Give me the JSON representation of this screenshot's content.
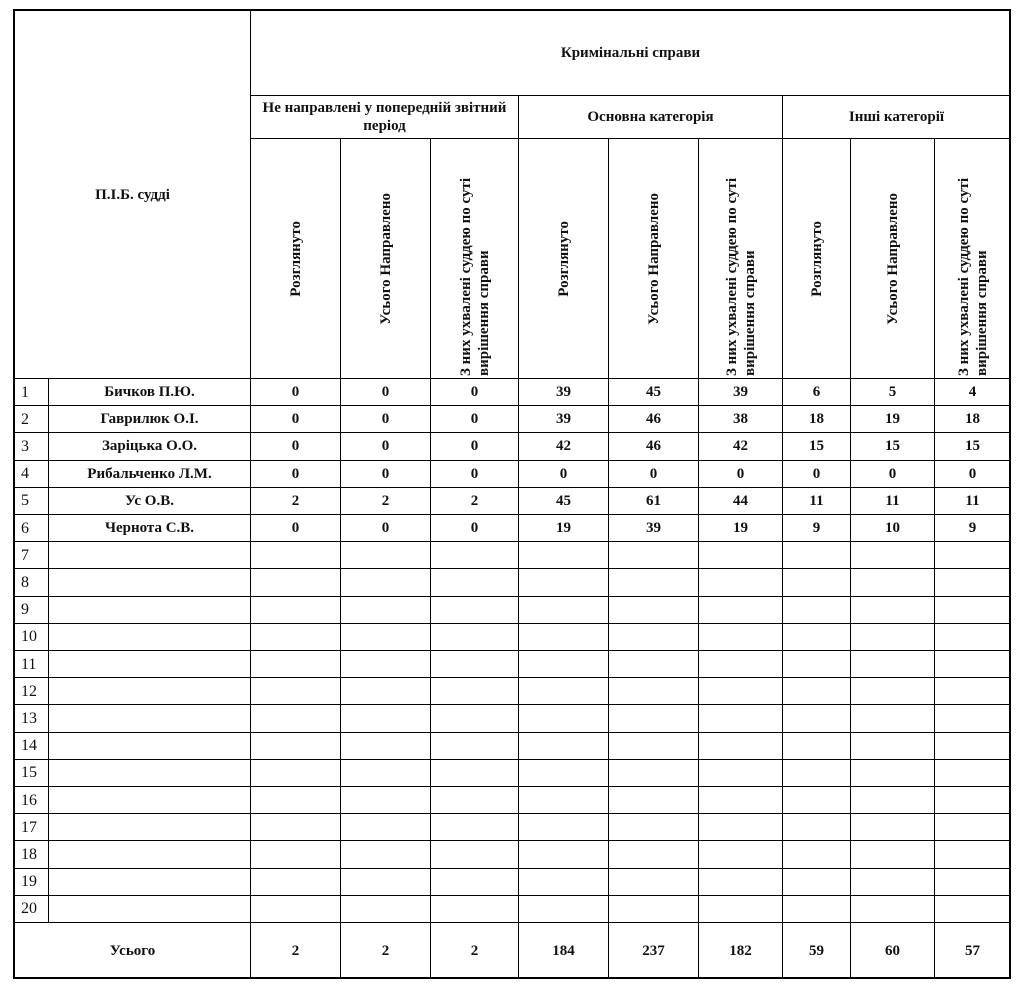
{
  "header": {
    "judge_column": "П.І.Б. судді",
    "title": "Кримінальні справи",
    "groups": [
      {
        "title": "Не направлені у попередній звітний період",
        "columns": [
          "Розглянуто",
          "Усього Направлено",
          "З них ухвалені суддею по суті вирішення справи"
        ]
      },
      {
        "title": "Основна категорія",
        "columns": [
          "Розглянуто",
          "Усього Направлено",
          "З них ухвалені суддею по суті вирішення справи"
        ]
      },
      {
        "title": "Інші категорії",
        "columns": [
          "Розглянуто",
          "Усього Направлено",
          "З них ухвалені суддею по суті вирішення справи"
        ]
      }
    ]
  },
  "rows": [
    {
      "number": 1,
      "name": "Бичков П.Ю.",
      "values": [
        0,
        0,
        0,
        39,
        45,
        39,
        6,
        5,
        4
      ]
    },
    {
      "number": 2,
      "name": "Гаврилюк О.І.",
      "values": [
        0,
        0,
        0,
        39,
        46,
        38,
        18,
        19,
        18
      ]
    },
    {
      "number": 3,
      "name": "Заріцька О.О.",
      "values": [
        0,
        0,
        0,
        42,
        46,
        42,
        15,
        15,
        15
      ]
    },
    {
      "number": 4,
      "name": "Рибальченко Л.М.",
      "values": [
        0,
        0,
        0,
        0,
        0,
        0,
        0,
        0,
        0
      ]
    },
    {
      "number": 5,
      "name": "Ус О.В.",
      "values": [
        2,
        2,
        2,
        45,
        61,
        44,
        11,
        11,
        11
      ]
    },
    {
      "number": 6,
      "name": "Чернота С.В.",
      "values": [
        0,
        0,
        0,
        19,
        39,
        19,
        9,
        10,
        9
      ]
    },
    {
      "number": 7
    },
    {
      "number": 8
    },
    {
      "number": 9
    },
    {
      "number": 10
    },
    {
      "number": 11
    },
    {
      "number": 12
    },
    {
      "number": 13
    },
    {
      "number": 14
    },
    {
      "number": 15
    },
    {
      "number": 16
    },
    {
      "number": 17
    },
    {
      "number": 18
    },
    {
      "number": 19
    },
    {
      "number": 20
    }
  ],
  "total": {
    "label": "Усього",
    "values": [
      2,
      2,
      2,
      184,
      237,
      182,
      59,
      60,
      57
    ]
  }
}
